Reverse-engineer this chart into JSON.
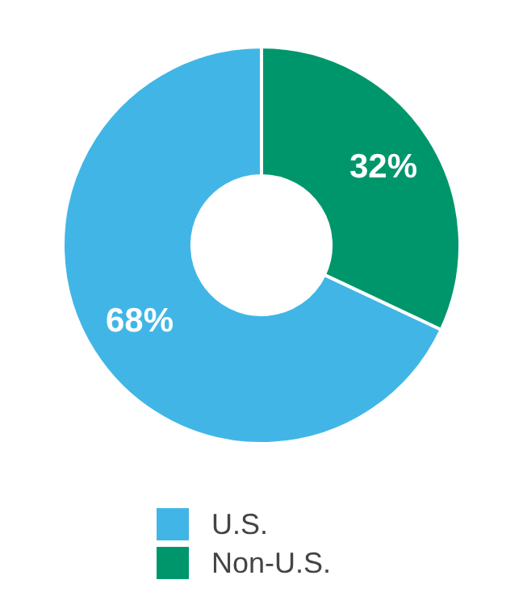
{
  "chart_data": {
    "type": "donut",
    "categories": [
      "U.S.",
      "Non-U.S."
    ],
    "values": [
      68,
      32
    ],
    "colors": [
      "#41b6e6",
      "#00966c"
    ],
    "value_labels": [
      "68%",
      "32%"
    ],
    "legend": "bottom"
  }
}
